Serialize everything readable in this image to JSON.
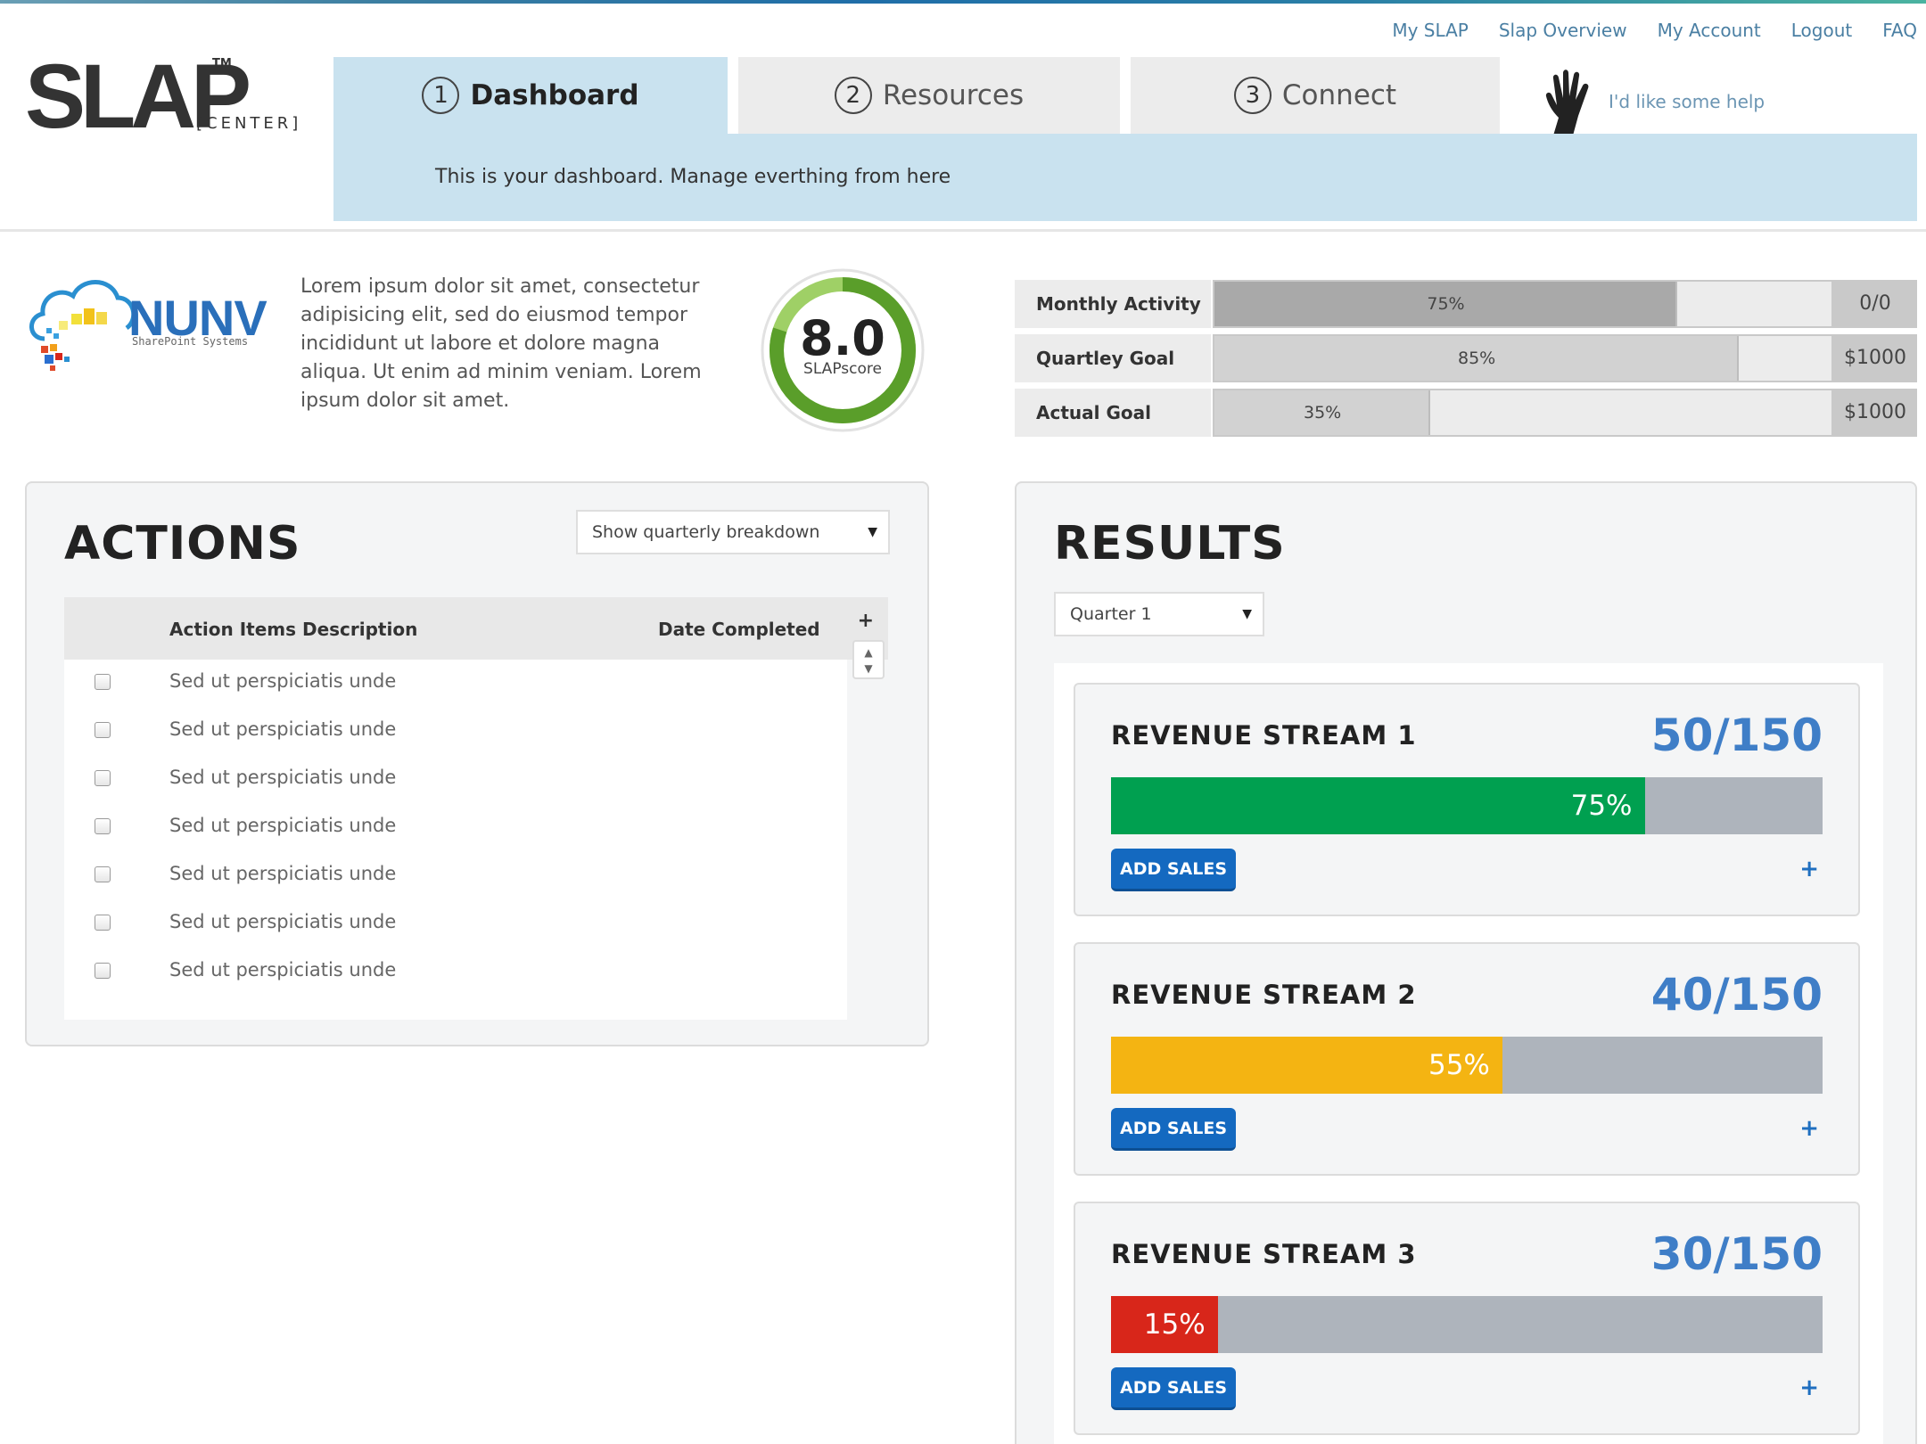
{
  "top_nav": [
    "My SLAP",
    "Slap Overview",
    "My Account",
    "Logout",
    "FAQ"
  ],
  "logo": {
    "main": "SLAP",
    "tm": "TM",
    "sub": "[CENTER]"
  },
  "tabs": [
    {
      "num": "1",
      "label": "Dashboard",
      "active": true
    },
    {
      "num": "2",
      "label": "Resources",
      "active": false
    },
    {
      "num": "3",
      "label": "Connect",
      "active": false
    }
  ],
  "help": {
    "label": "I'd like some help",
    "icon": "hand-wave-icon"
  },
  "tab_description": "This is your dashboard. Manage everthing from here",
  "company": {
    "logo_name": "NUNV",
    "logo_tagline": "SharePoint Systems",
    "description": "Lorem ipsum dolor sit amet, consectetur adipisicing elit, sed do eiusmod tempor incididunt ut labore et dolore magna aliqua. Ut enim ad minim veniam. Lorem ipsum dolor sit amet."
  },
  "score": {
    "value": "8.0",
    "label": "SLAPscore",
    "fraction": 0.8,
    "ring_color": "#5a9e2a",
    "ring_light": "#9fd066"
  },
  "metrics": [
    {
      "label": "Monthly Activity",
      "pct_label": "75%",
      "fraction": 0.75,
      "value": "0/0",
      "dark": true
    },
    {
      "label": "Quartley Goal",
      "pct_label": "85%",
      "fraction": 0.85,
      "value": "$1000",
      "dark": false
    },
    {
      "label": "Actual Goal",
      "pct_label": "35%",
      "fraction": 0.35,
      "value": "$1000",
      "dark": false
    }
  ],
  "actions": {
    "title": "ACTIONS",
    "filter": "Show quarterly breakdown",
    "columns": [
      "Action Items Description",
      "Date Completed"
    ],
    "add_symbol": "+",
    "items": [
      "Sed ut perspiciatis unde",
      "Sed ut perspiciatis unde",
      "Sed ut perspiciatis unde",
      "Sed ut perspiciatis unde",
      "Sed ut perspiciatis unde",
      "Sed ut perspiciatis unde",
      "Sed ut perspiciatis unde"
    ]
  },
  "results": {
    "title": "RESULTS",
    "quarter": "Quarter 1",
    "streams": [
      {
        "name": "REVENUE STREAM 1",
        "ratio": "50/150",
        "pct_label": "75%",
        "fraction": 0.75,
        "color": "#00a050",
        "button": "ADD SALES",
        "plus": "+"
      },
      {
        "name": "REVENUE STREAM 2",
        "ratio": "40/150",
        "pct_label": "55%",
        "fraction": 0.55,
        "color": "#f4b412",
        "button": "ADD SALES",
        "plus": "+"
      },
      {
        "name": "REVENUE STREAM 3",
        "ratio": "30/150",
        "pct_label": "15%",
        "fraction": 0.15,
        "color": "#d8261a",
        "button": "ADD SALES",
        "plus": "+"
      }
    ]
  }
}
